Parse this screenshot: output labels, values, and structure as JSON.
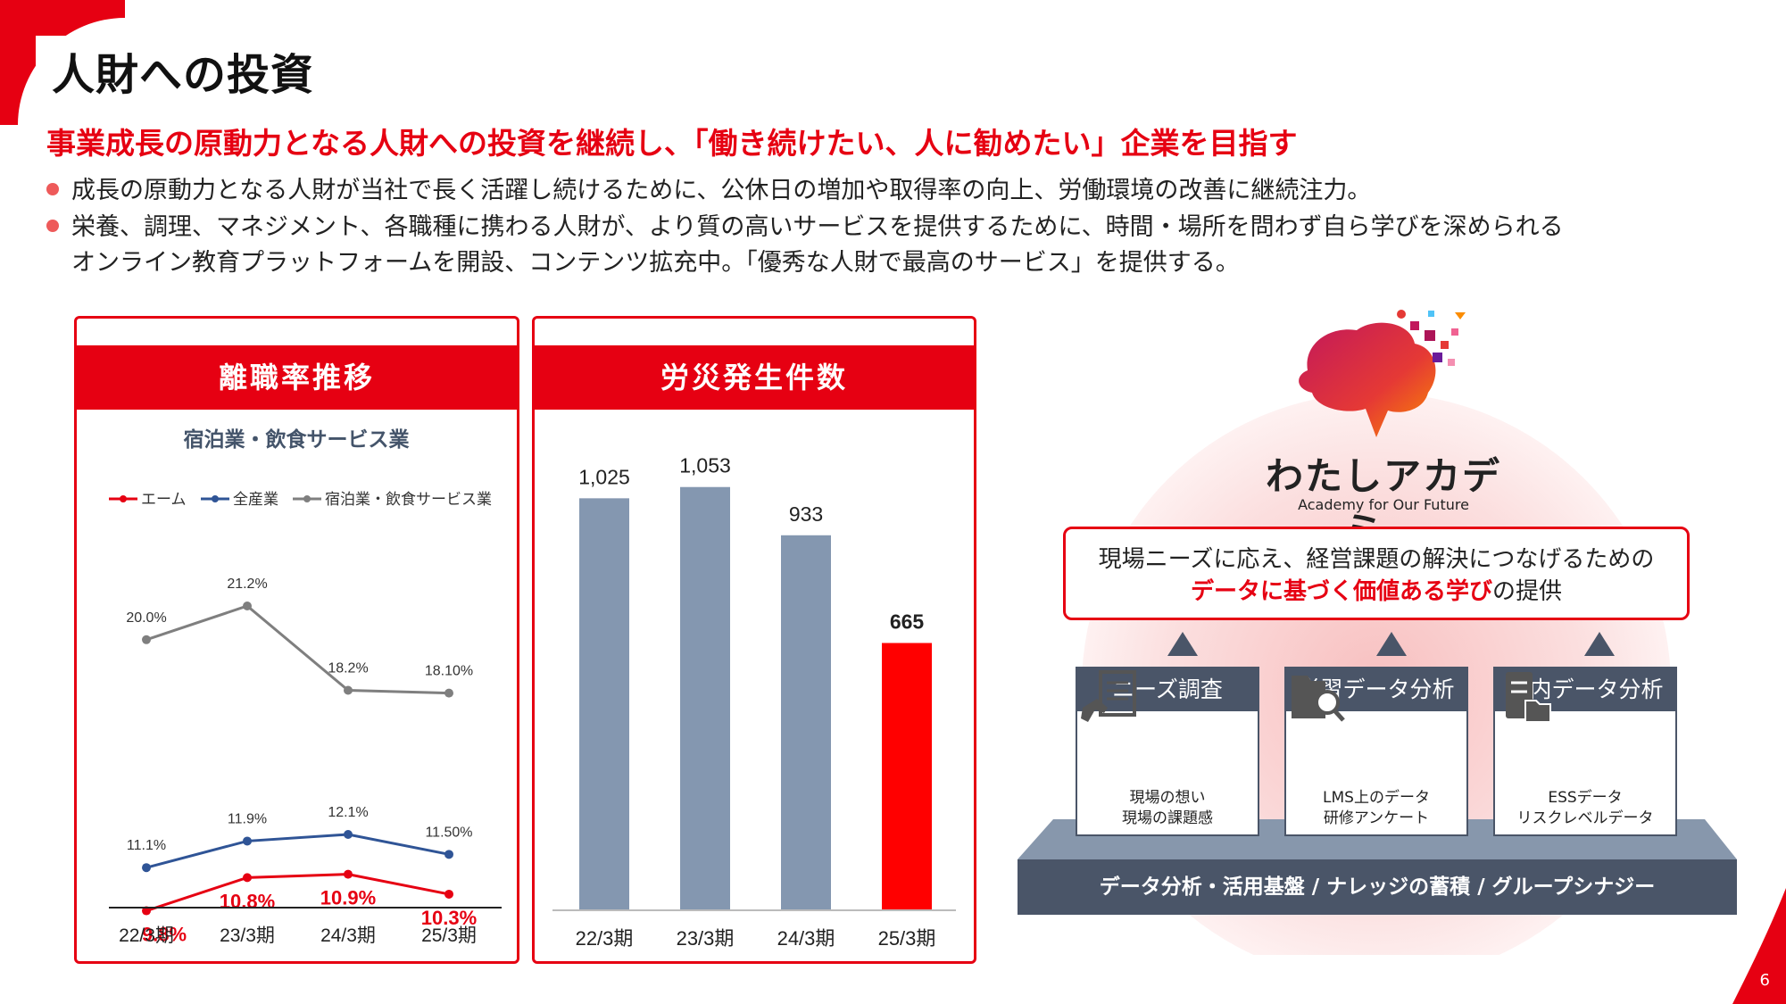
{
  "page": {
    "title": "人財への投資",
    "subtitle": "事業成長の原動力となる人財への投資を継続し、「働き続けたい、人に勧めたい」企業を目指す",
    "bullets": [
      {
        "line1": "成長の原動力となる人財が当社で長く活躍し続けるために、公休日の増加や取得率の向上、労働環境の改善に継続注力。"
      },
      {
        "line1": "栄養、調理、マネジメント、各職種に携わる人財が、より質の高いサービスを提供するために、時間・場所を問わず自ら学びを深められる",
        "line2": "オンライン教育プラットフォームを開設、コンテンツ拡充中。「優秀な人財で最高のサービス」を提供する。"
      }
    ],
    "page_number": "6",
    "colors": {
      "accent": "#e60012",
      "navy": "#4a5568",
      "bar": "#8497b0"
    }
  },
  "turnover": {
    "header": "離職率推移",
    "title": "宿泊業・飲食サービス業"
  },
  "accidents": {
    "header": "労災発生件数"
  },
  "academy": {
    "name": "わたしアカデミー",
    "sub": "Academy for Our Future",
    "value_line1": "現場ニーズに応え、経営課題の解決につなげるための",
    "value_highlight": "データに基づく価値ある学び",
    "value_suffix": "の提供",
    "columns": [
      {
        "title": "ニーズ調査",
        "icon": "document-hand-icon",
        "line1": "現場の想い",
        "line2": "現場の課題感"
      },
      {
        "title": "学習データ分析",
        "icon": "folder-search-icon",
        "line1": "LMS上のデータ",
        "line2": "研修アンケート"
      },
      {
        "title": "社内データ分析",
        "icon": "server-folder-icon",
        "line1": "ESSデータ",
        "line2": "リスクレベルデータ"
      }
    ],
    "base": "データ分析・活用基盤 / ナレッジの蓄積 / グループシナジー"
  },
  "chart_data": [
    {
      "type": "line",
      "title": "宿泊業・飲食サービス業",
      "categories": [
        "22/3期",
        "23/3期",
        "24/3期",
        "25/3期"
      ],
      "series": [
        {
          "name": "エーム",
          "color": "#e60012",
          "values": [
            9.8,
            10.8,
            10.9,
            10.3
          ],
          "labels": [
            "9.8%",
            "10.8%",
            "10.9%",
            "10.3%"
          ]
        },
        {
          "name": "全産業",
          "color": "#2f5496",
          "values": [
            11.1,
            11.9,
            12.1,
            11.5
          ],
          "labels": [
            "11.1%",
            "11.9%",
            "12.1%",
            "11.50%"
          ]
        },
        {
          "name": "宿泊業・飲食サービス業",
          "color": "#7f7f7f",
          "values": [
            20.0,
            21.2,
            18.2,
            18.1
          ],
          "labels": [
            "20.0%",
            "21.2%",
            "18.2%",
            "18.10%"
          ]
        }
      ],
      "legend": "top"
    },
    {
      "type": "bar",
      "categories": [
        "22/3期",
        "23/3期",
        "24/3期",
        "25/3期"
      ],
      "values": [
        1025,
        1053,
        933,
        665
      ],
      "labels": [
        "1,025",
        "1,053",
        "933",
        "665"
      ],
      "colors": [
        "#8497b0",
        "#8497b0",
        "#8497b0",
        "#ff0000"
      ]
    }
  ]
}
